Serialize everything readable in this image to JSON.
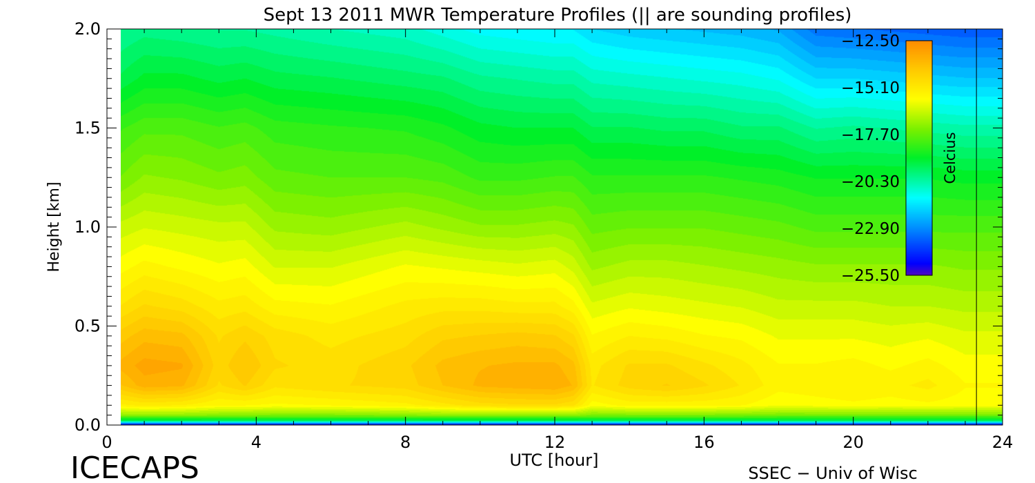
{
  "chart_data": {
    "type": "heatmap",
    "title": "Sept 13 2011 MWR Temperature Profiles (|| are sounding profiles)",
    "xlabel": "UTC [hour]",
    "ylabel": "Height [km]",
    "xlim": [
      0,
      24
    ],
    "ylim": [
      0,
      2
    ],
    "xticks": [
      0,
      4,
      8,
      12,
      16,
      20,
      24
    ],
    "yticks": [
      0.0,
      0.5,
      1.0,
      1.5,
      2.0
    ],
    "xtick_labels": [
      "0",
      "4",
      "8",
      "12",
      "16",
      "20",
      "24"
    ],
    "ytick_labels": [
      "0.0",
      "0.5",
      "1.0",
      "1.5",
      "2.0"
    ],
    "colorbar": {
      "label": "Celcius",
      "min": -25.5,
      "max": -12.5,
      "tick_values": [
        -12.5,
        -15.1,
        -17.7,
        -20.3,
        -22.9,
        -25.5
      ],
      "tick_labels": [
        "−12.50",
        "−15.10",
        "−17.70",
        "−20.30",
        "−22.90",
        "−25.50"
      ]
    },
    "sounding_times": [
      23.3
    ],
    "heights_km": [
      0.0,
      0.02,
      0.05,
      0.1,
      0.2,
      0.3,
      0.45,
      0.6,
      0.8,
      1.0,
      1.25,
      1.5,
      1.75,
      2.0
    ],
    "times_hour": [
      0.3,
      1,
      2,
      3,
      3.7,
      4.5,
      6,
      8,
      9,
      10,
      11,
      12,
      12.5,
      13,
      14,
      15,
      16,
      17,
      18,
      19,
      20,
      21,
      22,
      23,
      23.3,
      24
    ],
    "temperature_c": [
      [
        -25.0,
        -19.5,
        -17.0,
        -15.2,
        -13.9,
        -13.4,
        -14.0,
        -14.8,
        -15.6,
        -16.3,
        -17.4,
        -18.1,
        -19.3,
        -20.0
      ],
      [
        -25.0,
        -19.5,
        -17.0,
        -15.0,
        -13.3,
        -13.0,
        -13.6,
        -14.4,
        -15.3,
        -16.1,
        -17.0,
        -17.8,
        -18.9,
        -19.8
      ],
      [
        -25.0,
        -19.5,
        -17.0,
        -15.1,
        -13.4,
        -13.1,
        -13.7,
        -14.6,
        -15.5,
        -16.2,
        -17.1,
        -17.8,
        -18.9,
        -19.9
      ],
      [
        -25.0,
        -19.5,
        -17.1,
        -15.4,
        -14.5,
        -14.3,
        -14.5,
        -15.0,
        -15.7,
        -16.3,
        -17.3,
        -18.0,
        -19.1,
        -20.0
      ],
      [
        -25.0,
        -19.5,
        -17.1,
        -15.4,
        -14.1,
        -13.8,
        -14.2,
        -14.9,
        -15.6,
        -16.3,
        -17.2,
        -17.9,
        -19.0,
        -20.0
      ],
      [
        -25.0,
        -19.5,
        -17.2,
        -15.5,
        -14.7,
        -14.4,
        -14.6,
        -15.3,
        -16.1,
        -16.8,
        -17.6,
        -18.2,
        -19.2,
        -20.1
      ],
      [
        -25.0,
        -19.5,
        -17.2,
        -15.4,
        -14.5,
        -14.6,
        -14.9,
        -15.4,
        -16.1,
        -16.9,
        -17.7,
        -18.3,
        -19.3,
        -20.3
      ],
      [
        -25.0,
        -19.5,
        -17.1,
        -15.2,
        -14.3,
        -14.2,
        -14.6,
        -15.0,
        -15.7,
        -16.6,
        -17.7,
        -18.4,
        -19.5,
        -20.5
      ],
      [
        -25.0,
        -19.5,
        -17.0,
        -14.9,
        -13.8,
        -13.7,
        -14.2,
        -14.9,
        -15.8,
        -16.8,
        -17.8,
        -18.6,
        -19.6,
        -20.8
      ],
      [
        -25.0,
        -19.5,
        -17.0,
        -14.6,
        -13.4,
        -13.5,
        -14.1,
        -14.9,
        -15.9,
        -17.0,
        -18.1,
        -18.9,
        -19.9,
        -21.1
      ],
      [
        -25.0,
        -19.5,
        -17.0,
        -14.5,
        -13.3,
        -13.4,
        -14.0,
        -15.0,
        -16.0,
        -17.0,
        -18.1,
        -19.0,
        -20.0,
        -21.2
      ],
      [
        -25.0,
        -19.5,
        -17.0,
        -14.5,
        -13.2,
        -13.4,
        -14.1,
        -15.0,
        -15.9,
        -16.9,
        -18.0,
        -19.0,
        -20.1,
        -21.3
      ],
      [
        -25.0,
        -19.5,
        -17.0,
        -14.7,
        -13.5,
        -13.7,
        -14.4,
        -15.3,
        -16.2,
        -17.0,
        -18.0,
        -19.0,
        -20.1,
        -21.3
      ],
      [
        -25.0,
        -19.5,
        -17.2,
        -15.6,
        -14.8,
        -14.9,
        -15.4,
        -16.0,
        -16.8,
        -17.5,
        -18.3,
        -19.3,
        -20.4,
        -21.6
      ],
      [
        -25.0,
        -19.5,
        -17.2,
        -15.3,
        -14.3,
        -14.4,
        -15.1,
        -15.8,
        -16.6,
        -17.4,
        -18.3,
        -19.3,
        -20.5,
        -21.8
      ],
      [
        -25.0,
        -19.5,
        -17.2,
        -15.3,
        -14.1,
        -14.4,
        -15.2,
        -15.9,
        -16.6,
        -17.4,
        -18.3,
        -19.4,
        -20.6,
        -21.9
      ],
      [
        -25.0,
        -19.5,
        -17.2,
        -15.3,
        -14.4,
        -14.7,
        -15.4,
        -16.0,
        -16.7,
        -17.4,
        -18.3,
        -19.4,
        -20.7,
        -22.0
      ],
      [
        -25.0,
        -19.5,
        -17.2,
        -15.4,
        -14.8,
        -15.0,
        -15.5,
        -16.1,
        -16.8,
        -17.5,
        -18.4,
        -19.6,
        -20.8,
        -22.1
      ],
      [
        -25.0,
        -19.5,
        -17.3,
        -15.7,
        -15.3,
        -15.4,
        -15.8,
        -16.3,
        -16.9,
        -17.6,
        -18.5,
        -19.6,
        -21.0,
        -22.3
      ],
      [
        -25.0,
        -19.5,
        -17.3,
        -15.6,
        -15.2,
        -15.4,
        -15.8,
        -16.3,
        -17.0,
        -17.8,
        -18.7,
        -20.0,
        -21.6,
        -23.1
      ],
      [
        -25.0,
        -19.5,
        -17.3,
        -15.5,
        -15.1,
        -15.3,
        -15.8,
        -16.3,
        -17.0,
        -17.8,
        -18.7,
        -19.9,
        -21.6,
        -23.2
      ],
      [
        -25.0,
        -19.5,
        -17.3,
        -15.6,
        -15.2,
        -15.5,
        -15.9,
        -16.4,
        -17.0,
        -17.8,
        -18.7,
        -20.0,
        -21.7,
        -23.3
      ],
      [
        -25.0,
        -19.5,
        -17.3,
        -15.5,
        -15.0,
        -15.3,
        -15.8,
        -16.4,
        -17.0,
        -17.8,
        -18.7,
        -20.1,
        -21.8,
        -23.4
      ],
      [
        -25.0,
        -19.5,
        -17.3,
        -15.6,
        -15.4,
        -15.6,
        -16.0,
        -16.5,
        -17.1,
        -17.8,
        -18.8,
        -20.2,
        -21.9,
        -23.5
      ],
      [
        -25.0,
        -19.5,
        -17.3,
        -15.6,
        -15.4,
        -15.6,
        -16.0,
        -16.5,
        -17.1,
        -17.8,
        -18.8,
        -20.2,
        -21.9,
        -23.5
      ],
      [
        -25.0,
        -19.5,
        -17.3,
        -15.6,
        -15.4,
        -15.6,
        -16.0,
        -16.5,
        -17.1,
        -17.8,
        -18.8,
        -20.2,
        -21.9,
        -23.5
      ]
    ]
  },
  "footer": {
    "logo": "ICECAPS",
    "credit": "SSEC − Univ of Wisc"
  }
}
